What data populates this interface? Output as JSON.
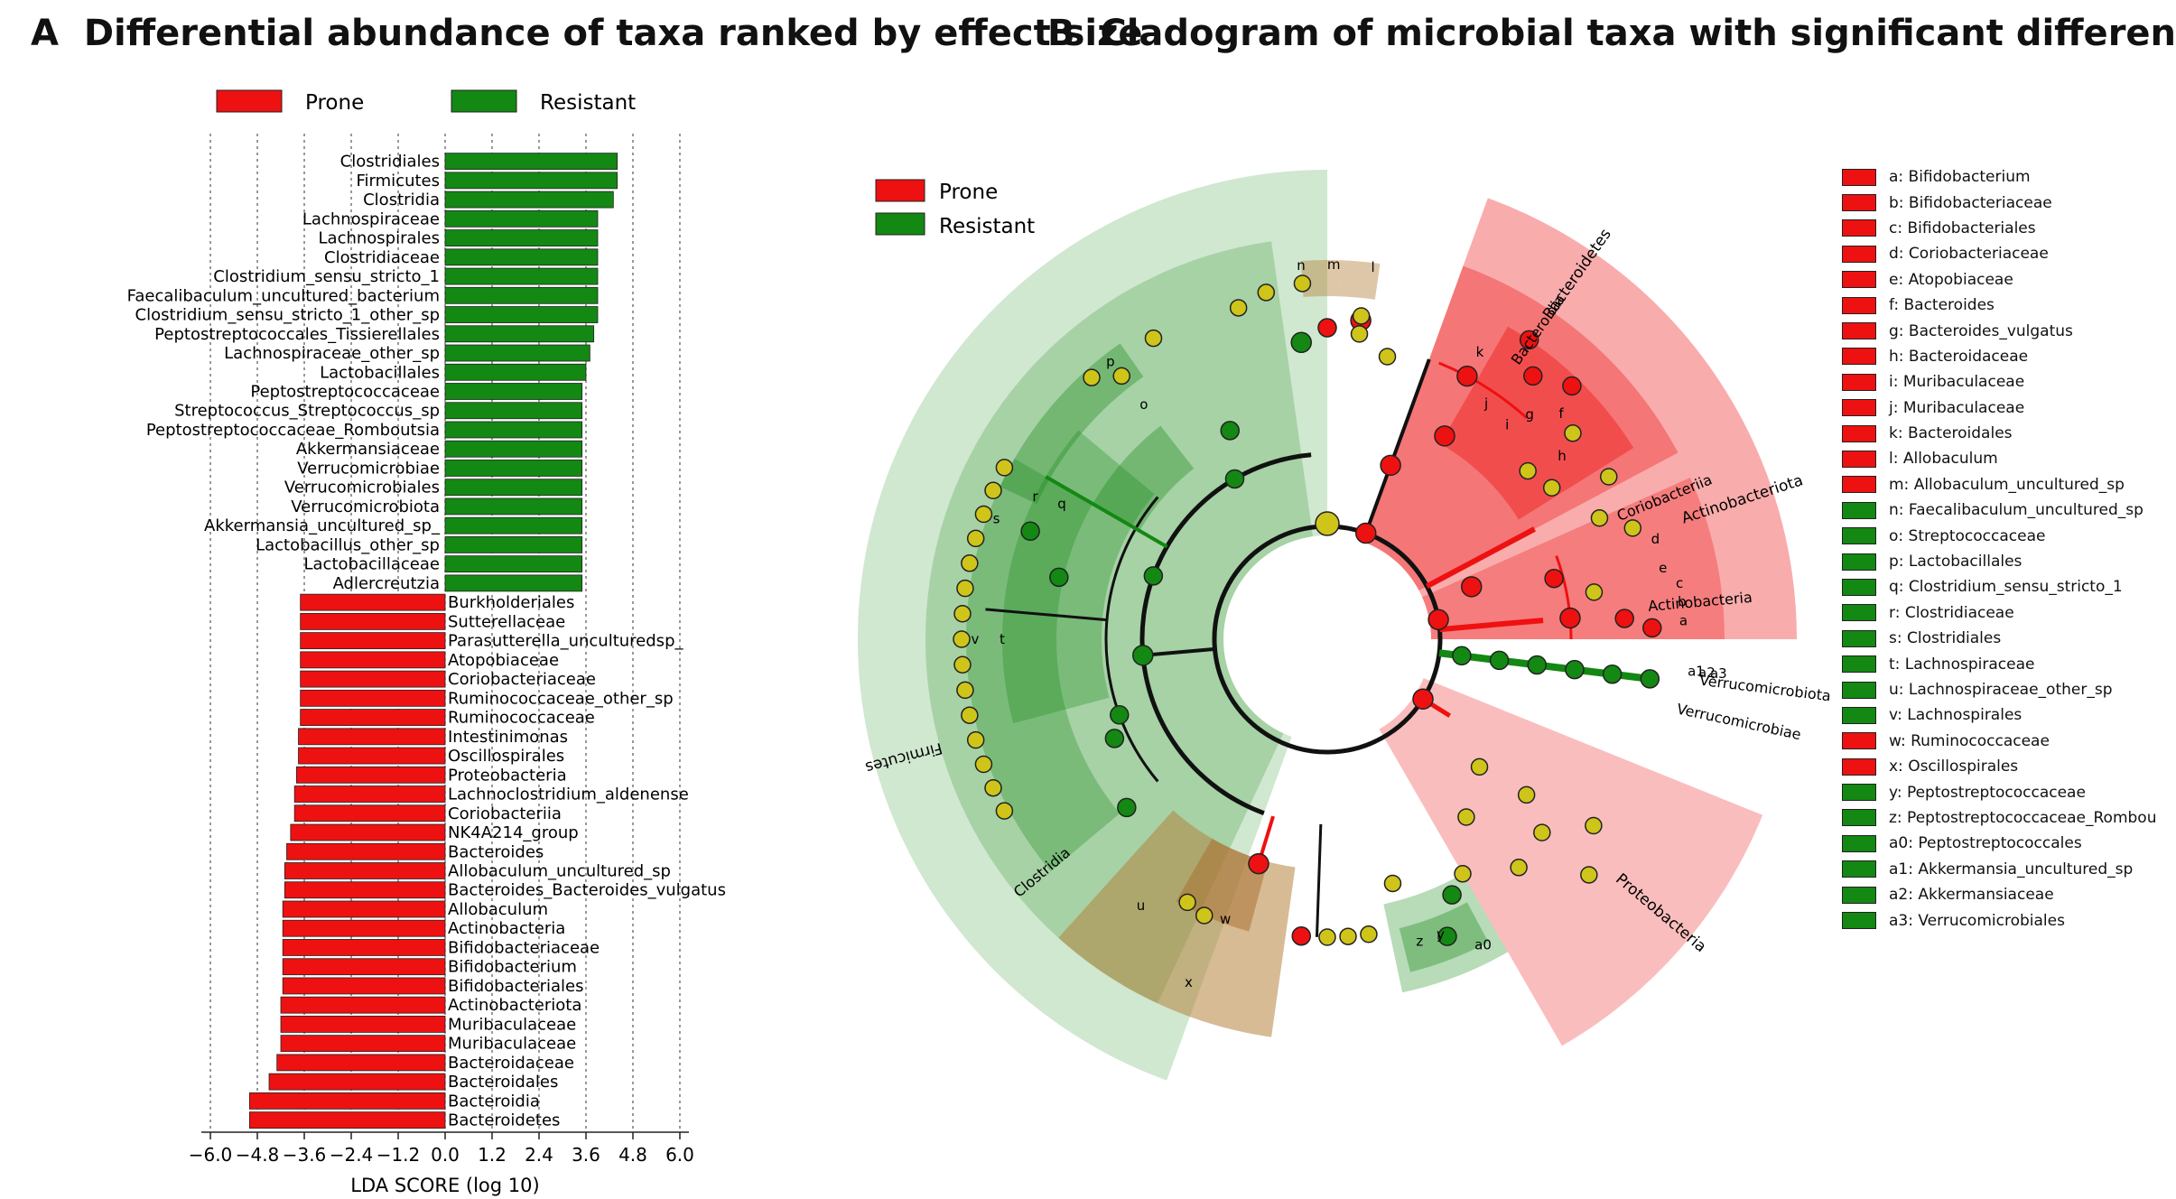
{
  "panel_a": {
    "letter": "A",
    "title": "Differential abundance of taxa ranked by effect size"
  },
  "panel_b": {
    "letter": "B",
    "title": "Cladogram of microbial taxa with significant differences"
  },
  "colors": {
    "prone": "#ee1111",
    "resistant": "#138813",
    "prone_light": "#f7a4a4",
    "resistant_light": "#cfe8cc",
    "node_yellow": "#cfc41a"
  },
  "chart_data": [
    {
      "type": "bar",
      "orientation": "horizontal",
      "title": "Differential abundance of taxa ranked by effect size",
      "xlabel": "LDA SCORE (log 10)",
      "xlim": [
        -6.0,
        6.0
      ],
      "xticks": [
        "−6.0",
        "−4.8",
        "−3.6",
        "−2.4",
        "−1.2",
        "0.0",
        "1.2",
        "2.4",
        "3.6",
        "4.8",
        "6.0"
      ],
      "legend": [
        {
          "name": "Prone",
          "color": "#ee1111"
        },
        {
          "name": "Resistant",
          "color": "#138813"
        }
      ],
      "bars": [
        {
          "label": "Clostridiales",
          "group": "Resistant",
          "value": 4.4
        },
        {
          "label": "Firmicutes",
          "group": "Resistant",
          "value": 4.4
        },
        {
          "label": "Clostridia",
          "group": "Resistant",
          "value": 4.3
        },
        {
          "label": "Lachnospiraceae",
          "group": "Resistant",
          "value": 3.9
        },
        {
          "label": "Lachnospirales",
          "group": "Resistant",
          "value": 3.9
        },
        {
          "label": "Clostridiaceae",
          "group": "Resistant",
          "value": 3.9
        },
        {
          "label": "Clostridium_sensu_stricto_1",
          "group": "Resistant",
          "value": 3.9
        },
        {
          "label": "Faecalibaculum_uncultured_bacterium",
          "group": "Resistant",
          "value": 3.9
        },
        {
          "label": "Clostridium_sensu_stricto_1_other_sp",
          "group": "Resistant",
          "value": 3.9
        },
        {
          "label": "Peptostreptococcales_Tissierellales",
          "group": "Resistant",
          "value": 3.8
        },
        {
          "label": "Lachnospiraceae_other_sp",
          "group": "Resistant",
          "value": 3.7
        },
        {
          "label": "Lactobacillales",
          "group": "Resistant",
          "value": 3.6
        },
        {
          "label": "Peptostreptococcaceae",
          "group": "Resistant",
          "value": 3.5
        },
        {
          "label": "Streptococcus_Streptococcus_sp",
          "group": "Resistant",
          "value": 3.5
        },
        {
          "label": "Peptostreptococcaceae_Romboutsia",
          "group": "Resistant",
          "value": 3.5
        },
        {
          "label": "Akkermansiaceae",
          "group": "Resistant",
          "value": 3.5
        },
        {
          "label": "Verrucomicrobiae",
          "group": "Resistant",
          "value": 3.5
        },
        {
          "label": "Verrucomicrobiales",
          "group": "Resistant",
          "value": 3.5
        },
        {
          "label": "Verrucomicrobiota",
          "group": "Resistant",
          "value": 3.5
        },
        {
          "label": "Akkermansia_uncultured_sp_",
          "group": "Resistant",
          "value": 3.5
        },
        {
          "label": "Lactobacillus_other_sp",
          "group": "Resistant",
          "value": 3.5
        },
        {
          "label": "Lactobacillaceae",
          "group": "Resistant",
          "value": 3.5
        },
        {
          "label": "Adlercreutzia",
          "group": "Resistant",
          "value": 3.5
        },
        {
          "label": "Burkholderiales",
          "group": "Prone",
          "value": -3.7
        },
        {
          "label": "Sutterellaceae",
          "group": "Prone",
          "value": -3.7
        },
        {
          "label": "Parasutterella_unculturedsp_",
          "group": "Prone",
          "value": -3.7
        },
        {
          "label": "Atopobiaceae",
          "group": "Prone",
          "value": -3.7
        },
        {
          "label": "Coriobacteriaceae",
          "group": "Prone",
          "value": -3.7
        },
        {
          "label": "Ruminococcaceae_other_sp",
          "group": "Prone",
          "value": -3.7
        },
        {
          "label": "Ruminococcaceae",
          "group": "Prone",
          "value": -3.7
        },
        {
          "label": "Intestinimonas",
          "group": "Prone",
          "value": -3.75
        },
        {
          "label": "Oscillospirales",
          "group": "Prone",
          "value": -3.75
        },
        {
          "label": "Proteobacteria",
          "group": "Prone",
          "value": -3.8
        },
        {
          "label": "Lachnoclostridium_aldenense",
          "group": "Prone",
          "value": -3.85
        },
        {
          "label": "Coriobacteriia",
          "group": "Prone",
          "value": -3.85
        },
        {
          "label": "NK4A214_group",
          "group": "Prone",
          "value": -3.95
        },
        {
          "label": "Bacteroides",
          "group": "Prone",
          "value": -4.05
        },
        {
          "label": "Allobaculum_uncultured_sp",
          "group": "Prone",
          "value": -4.1
        },
        {
          "label": "Bacteroides_Bacteroides_vulgatus",
          "group": "Prone",
          "value": -4.1
        },
        {
          "label": "Allobaculum",
          "group": "Prone",
          "value": -4.15
        },
        {
          "label": "Actinobacteria",
          "group": "Prone",
          "value": -4.15
        },
        {
          "label": "Bifidobacteriaceae",
          "group": "Prone",
          "value": -4.15
        },
        {
          "label": "Bifidobacterium",
          "group": "Prone",
          "value": -4.15
        },
        {
          "label": "Bifidobacteriales",
          "group": "Prone",
          "value": -4.15
        },
        {
          "label": "Actinobacteriota",
          "group": "Prone",
          "value": -4.2
        },
        {
          "label": "Muribaculaceae",
          "group": "Prone",
          "value": -4.2
        },
        {
          "label": "Muribaculaceae",
          "group": "Prone",
          "value": -4.2
        },
        {
          "label": "Bacteroidaceae",
          "group": "Prone",
          "value": -4.3
        },
        {
          "label": "Bacteroidales",
          "group": "Prone",
          "value": -4.5
        },
        {
          "label": "Bacteroidia",
          "group": "Prone",
          "value": -5.0
        },
        {
          "label": "Bacteroidetes",
          "group": "Prone",
          "value": -5.0
        }
      ]
    },
    {
      "type": "cladogram",
      "title": "Cladogram of microbial taxa with significant differences",
      "legend": [
        {
          "name": "Prone",
          "color": "#ee1111"
        },
        {
          "name": "Resistant",
          "color": "#138813"
        }
      ],
      "clade_labels": [
        "Firmicutes",
        "Clostridia",
        "Bacteroidetes",
        "Bacteroidia",
        "Actinobacteriota",
        "Actinobacteria",
        "Coriobacteriia",
        "Verrucomicrobiota",
        "Verrucomicrobiae",
        "Proteobacteria"
      ],
      "node_letters": [
        "a",
        "b",
        "c",
        "d",
        "e",
        "f",
        "g",
        "h",
        "i",
        "j",
        "k",
        "l",
        "m",
        "n",
        "o",
        "p",
        "q",
        "r",
        "s",
        "t",
        "u",
        "v",
        "w",
        "x",
        "y",
        "z",
        "a0",
        "a1",
        "a2",
        "a3"
      ],
      "taxa_legend": [
        {
          "label": "a: Bifidobacterium",
          "group": "Prone"
        },
        {
          "label": "b: Bifidobacteriaceae",
          "group": "Prone"
        },
        {
          "label": "c: Bifidobacteriales",
          "group": "Prone"
        },
        {
          "label": "d: Coriobacteriaceae",
          "group": "Prone"
        },
        {
          "label": "e: Atopobiaceae",
          "group": "Prone"
        },
        {
          "label": "f: Bacteroides",
          "group": "Prone"
        },
        {
          "label": "g: Bacteroides_vulgatus",
          "group": "Prone"
        },
        {
          "label": "h: Bacteroidaceae",
          "group": "Prone"
        },
        {
          "label": "i: Muribaculaceae",
          "group": "Prone"
        },
        {
          "label": "j: Muribaculaceae",
          "group": "Prone"
        },
        {
          "label": "k: Bacteroidales",
          "group": "Prone"
        },
        {
          "label": "l: Allobaculum",
          "group": "Prone"
        },
        {
          "label": "m: Allobaculum_uncultured_sp",
          "group": "Prone"
        },
        {
          "label": "n: Faecalibaculum_uncultured_sp",
          "group": "Resistant"
        },
        {
          "label": "o: Streptococcaceae",
          "group": "Resistant"
        },
        {
          "label": "p: Lactobacillales",
          "group": "Resistant"
        },
        {
          "label": "q: Clostridium_sensu_stricto_1",
          "group": "Resistant"
        },
        {
          "label": "r: Clostridiaceae",
          "group": "Resistant"
        },
        {
          "label": "s: Clostridiales",
          "group": "Resistant"
        },
        {
          "label": "t: Lachnospiraceae",
          "group": "Resistant"
        },
        {
          "label": "u: Lachnospiraceae_other_sp",
          "group": "Resistant"
        },
        {
          "label": "v: Lachnospirales",
          "group": "Resistant"
        },
        {
          "label": "w: Ruminococcaceae",
          "group": "Prone"
        },
        {
          "label": "x: Oscillospirales",
          "group": "Prone"
        },
        {
          "label": "y: Peptostreptococcaceae",
          "group": "Resistant"
        },
        {
          "label": "z: Peptostreptococcaceae_Rombou",
          "group": "Resistant"
        },
        {
          "label": "a0: Peptostreptococcales",
          "group": "Resistant"
        },
        {
          "label": "a1: Akkermansia_uncultured_sp",
          "group": "Resistant"
        },
        {
          "label": "a2: Akkermansiaceae",
          "group": "Resistant"
        },
        {
          "label": "a3: Verrucomicrobiales",
          "group": "Resistant"
        }
      ]
    }
  ]
}
